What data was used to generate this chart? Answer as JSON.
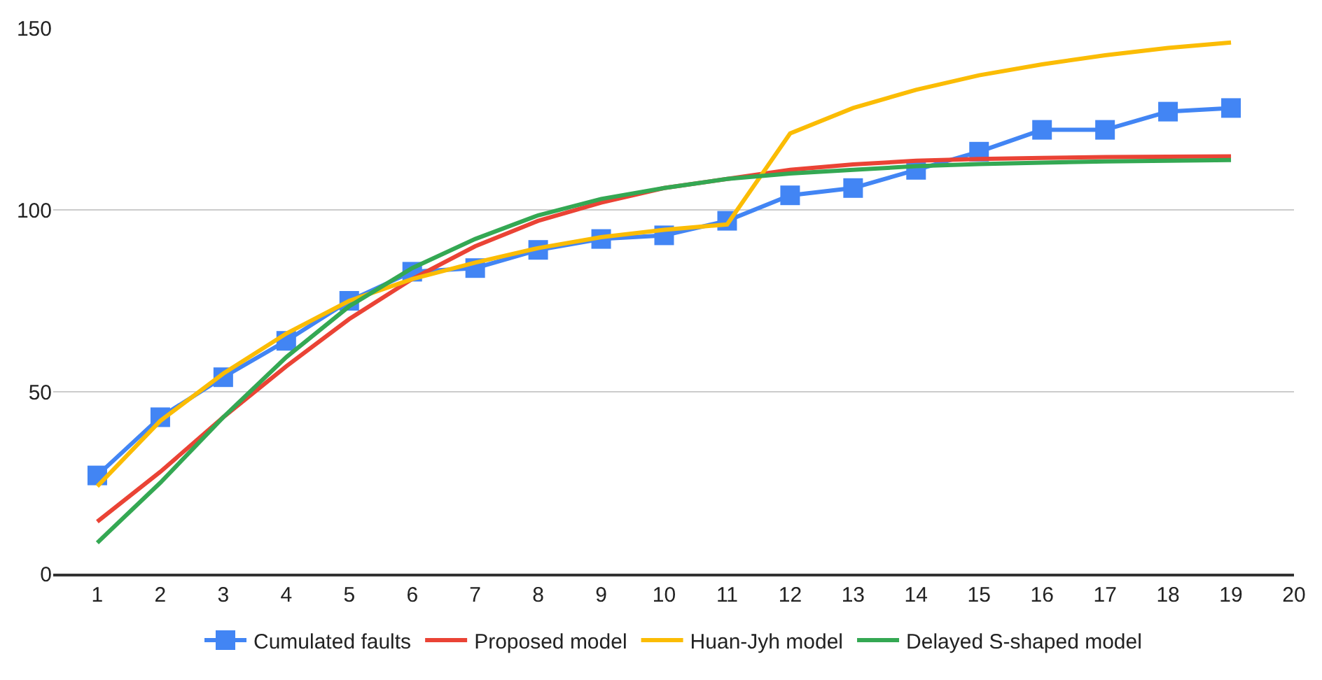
{
  "chart_data": {
    "type": "line",
    "x": [
      1,
      2,
      3,
      4,
      5,
      6,
      7,
      8,
      9,
      10,
      11,
      12,
      13,
      14,
      15,
      16,
      17,
      18,
      19
    ],
    "series": [
      {
        "name": "Cumulated faults",
        "color": "#4285f4",
        "marker": "square",
        "values": [
          27,
          43,
          54,
          64,
          75,
          83,
          84,
          89,
          92,
          93,
          97,
          104,
          106,
          111,
          116,
          122,
          122,
          127,
          128
        ]
      },
      {
        "name": "Proposed model",
        "color": "#ea4335",
        "values": [
          14.3,
          28,
          43,
          57,
          70,
          81,
          90,
          97,
          102,
          106,
          108.5,
          111,
          112.5,
          113.5,
          114,
          114.3,
          114.5,
          114.6,
          114.7
        ]
      },
      {
        "name": "Huan-Jyh model",
        "color": "#fbbc04",
        "values": [
          24,
          42,
          55,
          66,
          75,
          81,
          85.5,
          89.5,
          92.5,
          94.5,
          96,
          121,
          128,
          133,
          137,
          140,
          142.5,
          144.5,
          146
        ]
      },
      {
        "name": "Delayed S-shaped model",
        "color": "#34a853",
        "values": [
          8.5,
          25,
          43,
          59.5,
          73.5,
          84,
          92,
          98.5,
          103,
          106,
          108.5,
          110,
          111,
          112,
          112.6,
          113,
          113.3,
          113.5,
          113.7
        ]
      }
    ],
    "xlim": [
      0.3,
      20
    ],
    "xticks": [
      1,
      2,
      3,
      4,
      5,
      6,
      7,
      8,
      9,
      10,
      11,
      12,
      13,
      14,
      15,
      16,
      17,
      18,
      19,
      20
    ],
    "ylim": [
      0,
      150
    ],
    "yticks": [
      0,
      50,
      100,
      150
    ],
    "grid": "y",
    "legend": "bottom"
  }
}
